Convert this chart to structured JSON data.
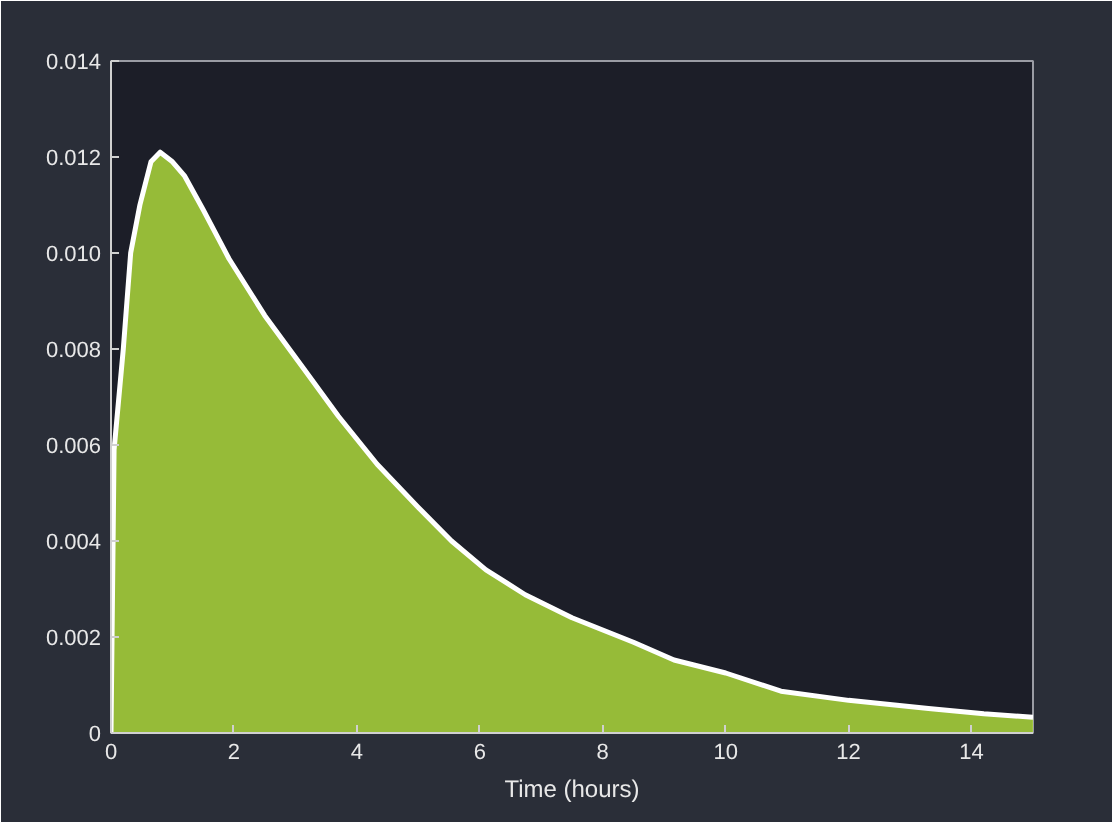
{
  "chart_data": {
    "type": "area",
    "xlabel": "Time (hours)",
    "x": [
      0,
      0.05,
      0.2,
      0.32,
      0.47,
      0.65,
      0.8,
      1.0,
      1.2,
      1.5,
      1.92,
      2.5,
      3.13,
      3.7,
      4.33,
      5.0,
      5.54,
      6.1,
      6.74,
      7.5,
      8.5,
      9.16,
      10.0,
      10.9,
      12.0,
      13.3,
      14.2,
      15
    ],
    "series": [
      {
        "color": "#a4cc3a",
        "values": [
          0,
          0.0059,
          0.008,
          0.01,
          0.011,
          0.0119,
          0.0121,
          0.0119,
          0.0116,
          0.0109,
          0.00988,
          0.0087,
          0.0076,
          0.0066,
          0.0056,
          0.0047,
          0.004,
          0.0034,
          0.00288,
          0.0024,
          0.00189,
          0.00152,
          0.00125,
          0.00087,
          0.00068,
          0.00051,
          0.0004,
          0.00033
        ]
      }
    ],
    "xlim": [
      0,
      15
    ],
    "ylim": [
      0,
      0.014
    ],
    "xticks": [
      0,
      2,
      4,
      6,
      8,
      10,
      12,
      14
    ],
    "yticks": [
      {
        "value": 0,
        "label": "0"
      },
      {
        "value": 0.002,
        "label": "0.002"
      },
      {
        "value": 0.004,
        "label": "0.004"
      },
      {
        "value": 0.006,
        "label": "0.006"
      },
      {
        "value": 0.008,
        "label": "0.008"
      },
      {
        "value": 0.01,
        "label": "0.010"
      },
      {
        "value": 0.012,
        "label": "0.012"
      },
      {
        "value": 0.014,
        "label": "0.014"
      }
    ],
    "grid": false
  }
}
